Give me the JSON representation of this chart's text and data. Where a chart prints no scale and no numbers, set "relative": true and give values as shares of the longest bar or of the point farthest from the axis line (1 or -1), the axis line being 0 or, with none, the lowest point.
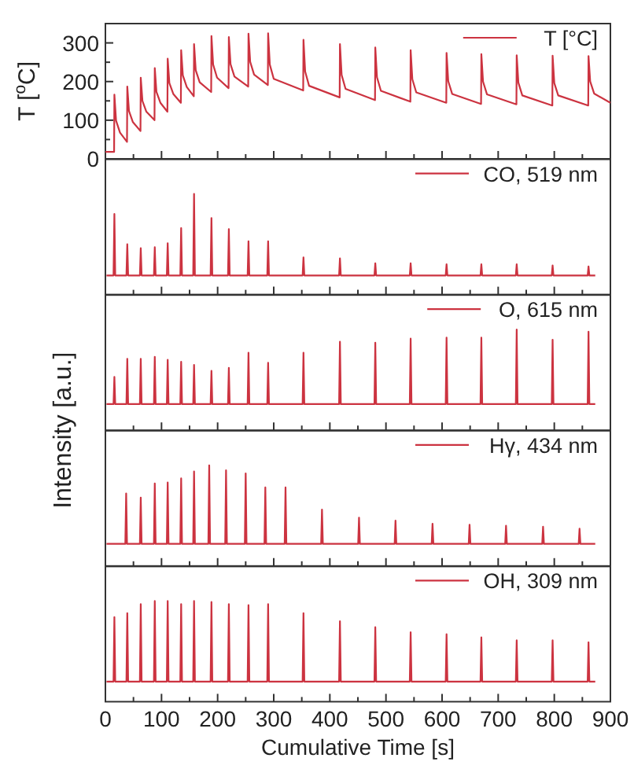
{
  "chart_data": [
    {
      "type": "line",
      "ylabel": "T [$^{o}$C]",
      "xlim": [
        0,
        900
      ],
      "ylim": [
        0,
        350
      ],
      "legend": "top right",
      "tick_labels": "y",
      "xticks": [
        0,
        {
          "value": 50,
          "label": null
        },
        100,
        {
          "value": 150,
          "label": null
        },
        200,
        {
          "value": 250,
          "label": null
        },
        300,
        {
          "value": 350,
          "label": null
        },
        400,
        {
          "value": 450,
          "label": null
        },
        500,
        {
          "value": 550,
          "label": null
        },
        600,
        {
          "value": 650,
          "label": null
        },
        700,
        {
          "value": 750,
          "label": null
        },
        800,
        {
          "value": 850,
          "label": null
        },
        900
      ],
      "yticks": [
        0,
        {
          "value": 50,
          "label": null
        },
        100,
        {
          "value": 150,
          "label": null
        },
        200,
        {
          "value": 250,
          "label": null
        },
        300
      ],
      "series": [
        {
          "name": "T [°C]",
          "color": "#cc3340",
          "x": [
            0,
            15.5,
            16,
            19,
            26,
            38.5,
            39,
            42,
            49,
            62.5,
            63,
            66,
            73,
            87.5,
            88,
            91,
            98,
            110.5,
            111,
            114,
            121,
            134.5,
            135,
            138,
            145,
            157.5,
            158,
            161,
            168,
            188.5,
            189,
            192,
            199,
            219.5,
            220,
            223,
            230,
            254.5,
            255,
            258,
            265,
            289.5,
            290,
            293,
            300,
            352.5,
            353,
            356,
            363,
            417.5,
            418,
            421,
            428,
            480.5,
            481,
            484,
            491,
            543.5,
            544,
            547,
            554,
            607.5,
            608,
            611,
            618,
            669.5,
            670,
            673,
            680,
            732.5,
            733,
            736,
            743,
            796.5,
            797,
            800,
            807,
            860.5,
            861,
            864,
            871,
            900
          ],
          "values": [
            18,
            18,
            166,
            99,
            68,
            44,
            187,
            124,
            95,
            72,
            210,
            150,
            122,
            100,
            235,
            173,
            145,
            122,
            259,
            196,
            168,
            145,
            281,
            216,
            186,
            162,
            297,
            229,
            198,
            173,
            318,
            244,
            210,
            183,
            315,
            245,
            213,
            187,
            324,
            251,
            218,
            191,
            325,
            244,
            207,
            177,
            308,
            226,
            189,
            159,
            297,
            217,
            181,
            152,
            288,
            211,
            176,
            148,
            281,
            206,
            172,
            145,
            274,
            201,
            168,
            142,
            271,
            200,
            167,
            141,
            268,
            197,
            164,
            138,
            267,
            196,
            164,
            138,
            266,
            200,
            169,
            145
          ]
        }
      ]
    },
    {
      "type": "line",
      "relative": true,
      "xlim": [
        0,
        900
      ],
      "legend": "top right",
      "tick_labels": false,
      "xticks": [
        0,
        {
          "value": 50,
          "label": null
        },
        100,
        {
          "value": 150,
          "label": null
        },
        200,
        {
          "value": 250,
          "label": null
        },
        300,
        {
          "value": 350,
          "label": null
        },
        400,
        {
          "value": 450,
          "label": null
        },
        500,
        {
          "value": 550,
          "label": null
        },
        600,
        {
          "value": 650,
          "label": null
        },
        700,
        {
          "value": 750,
          "label": null
        },
        800,
        {
          "value": 850,
          "label": null
        },
        900
      ],
      "series": [
        {
          "name": "CO, 519 nm",
          "color": "#cc3340",
          "x": [
            2,
            14.5,
            16,
            17.5,
            37.5,
            39,
            40.5,
            61.5,
            63,
            64.5,
            86.5,
            88,
            89.5,
            109.5,
            111,
            112.5,
            133.5,
            135,
            136.5,
            156.5,
            158,
            159.5,
            187.5,
            189,
            190.5,
            218.5,
            220,
            221.5,
            253.5,
            255,
            256.5,
            288.5,
            290,
            291.5,
            351.5,
            353,
            354.5,
            416.5,
            418,
            419.5,
            479.5,
            481,
            482.5,
            542.5,
            544,
            545.5,
            606.5,
            608,
            609.5,
            668.5,
            670,
            671.5,
            731.5,
            733,
            734.5,
            795.5,
            797,
            798.5,
            859.5,
            861,
            862.5,
            873
          ],
          "values": [
            0.19,
            0.19,
            0.8,
            0.19,
            0.19,
            0.5,
            0.19,
            0.19,
            0.46,
            0.19,
            0.19,
            0.47,
            0.19,
            0.19,
            0.51,
            0.19,
            0.19,
            0.66,
            0.19,
            0.19,
            1.0,
            0.19,
            0.19,
            0.76,
            0.19,
            0.19,
            0.65,
            0.19,
            0.19,
            0.53,
            0.19,
            0.19,
            0.53,
            0.19,
            0.19,
            0.37,
            0.19,
            0.19,
            0.36,
            0.19,
            0.19,
            0.31,
            0.19,
            0.19,
            0.31,
            0.19,
            0.19,
            0.3,
            0.19,
            0.19,
            0.3,
            0.19,
            0.19,
            0.3,
            0.19,
            0.19,
            0.29,
            0.19,
            0.19,
            0.28,
            0.19,
            0.19
          ]
        }
      ]
    },
    {
      "type": "line",
      "relative": true,
      "ylabel": "Intensity [a.u.]",
      "xlim": [
        0,
        900
      ],
      "legend": "top right",
      "tick_labels": false,
      "xticks": [
        0,
        {
          "value": 50,
          "label": null
        },
        100,
        {
          "value": 150,
          "label": null
        },
        200,
        {
          "value": 250,
          "label": null
        },
        300,
        {
          "value": 350,
          "label": null
        },
        400,
        {
          "value": 450,
          "label": null
        },
        500,
        {
          "value": 550,
          "label": null
        },
        600,
        {
          "value": 650,
          "label": null
        },
        700,
        {
          "value": 750,
          "label": null
        },
        800,
        {
          "value": 850,
          "label": null
        },
        900
      ],
      "series": [
        {
          "name": "O, 615 nm",
          "color": "#cc3340",
          "x": [
            2,
            14.5,
            16,
            17.5,
            37.5,
            39,
            40.5,
            61.5,
            63,
            64.5,
            86.5,
            88,
            89.5,
            109.5,
            111,
            112.5,
            133.5,
            135,
            136.5,
            156.5,
            158,
            159.5,
            187.5,
            189,
            190.5,
            218.5,
            220,
            221.5,
            253.5,
            255,
            256.5,
            288.5,
            290,
            291.5,
            351.5,
            353,
            354.5,
            416.5,
            418,
            419.5,
            479.5,
            481,
            482.5,
            542.5,
            544,
            545.5,
            606.5,
            608,
            609.5,
            668.5,
            670,
            671.5,
            731.5,
            733,
            734.5,
            795.5,
            797,
            798.5,
            859.5,
            861,
            862.5,
            873
          ],
          "values": [
            0.26,
            0.26,
            0.53,
            0.26,
            0.26,
            0.71,
            0.26,
            0.26,
            0.71,
            0.26,
            0.26,
            0.73,
            0.26,
            0.26,
            0.7,
            0.26,
            0.26,
            0.68,
            0.26,
            0.26,
            0.65,
            0.26,
            0.26,
            0.59,
            0.26,
            0.26,
            0.62,
            0.26,
            0.26,
            0.77,
            0.26,
            0.26,
            0.67,
            0.26,
            0.26,
            0.77,
            0.26,
            0.26,
            0.88,
            0.26,
            0.26,
            0.87,
            0.26,
            0.26,
            0.91,
            0.26,
            0.26,
            0.92,
            0.26,
            0.26,
            0.92,
            0.26,
            0.26,
            1.0,
            0.26,
            0.26,
            0.9,
            0.26,
            0.26,
            0.98,
            0.26,
            0.26
          ]
        }
      ]
    },
    {
      "type": "line",
      "relative": true,
      "xlim": [
        0,
        900
      ],
      "legend": "top right",
      "tick_labels": false,
      "xticks": [
        0,
        {
          "value": 50,
          "label": null
        },
        100,
        {
          "value": 150,
          "label": null
        },
        200,
        {
          "value": 250,
          "label": null
        },
        300,
        {
          "value": 350,
          "label": null
        },
        400,
        {
          "value": 450,
          "label": null
        },
        500,
        {
          "value": 550,
          "label": null
        },
        600,
        {
          "value": 650,
          "label": null
        },
        700,
        {
          "value": 750,
          "label": null
        },
        800,
        {
          "value": 850,
          "label": null
        },
        900
      ],
      "series": [
        {
          "name": "Hγ, 434 nm",
          "color": "#cc3340",
          "x": [
            2,
            35.5,
            37,
            38.5,
            61.5,
            63,
            64.5,
            86.5,
            88,
            89.5,
            109.5,
            111,
            112.5,
            133.5,
            135,
            136.5,
            156.5,
            158,
            159.5,
            183.5,
            185,
            186.5,
            213.5,
            215,
            216.5,
            248.5,
            250,
            251.5,
            283.5,
            285,
            286.5,
            319.5,
            321,
            322.5,
            384.5,
            386,
            387.5,
            450.5,
            452,
            453.5,
            515.5,
            517,
            518.5,
            581.5,
            583,
            584.5,
            647.5,
            649,
            650.5,
            712.5,
            714,
            715.5,
            778.5,
            780,
            781.5,
            843.5,
            845,
            846.5,
            873
          ],
          "values": [
            0.22,
            0.22,
            0.72,
            0.22,
            0.22,
            0.68,
            0.22,
            0.22,
            0.82,
            0.22,
            0.22,
            0.83,
            0.22,
            0.22,
            0.87,
            0.22,
            0.22,
            0.94,
            0.22,
            0.22,
            1.0,
            0.22,
            0.22,
            0.95,
            0.22,
            0.22,
            0.92,
            0.22,
            0.22,
            0.78,
            0.22,
            0.22,
            0.78,
            0.22,
            0.22,
            0.56,
            0.22,
            0.22,
            0.48,
            0.22,
            0.22,
            0.45,
            0.22,
            0.22,
            0.42,
            0.22,
            0.22,
            0.41,
            0.22,
            0.22,
            0.4,
            0.22,
            0.22,
            0.39,
            0.22,
            0.22,
            0.37,
            0.22,
            0.22
          ]
        }
      ]
    },
    {
      "type": "line",
      "relative": true,
      "xlabel": "Cumulative Time [s]",
      "xlim": [
        0,
        900
      ],
      "legend": "top right",
      "tick_labels": "x",
      "xticks": [
        0,
        {
          "value": 50,
          "label": null
        },
        100,
        {
          "value": 150,
          "label": null
        },
        200,
        {
          "value": 250,
          "label": null
        },
        300,
        {
          "value": 350,
          "label": null
        },
        400,
        {
          "value": 450,
          "label": null
        },
        500,
        {
          "value": 550,
          "label": null
        },
        600,
        {
          "value": 650,
          "label": null
        },
        700,
        {
          "value": 750,
          "label": null
        },
        800,
        {
          "value": 850,
          "label": null
        },
        900
      ],
      "series": [
        {
          "name": "OH, 309 nm",
          "color": "#cc3340",
          "x": [
            2,
            14.5,
            16,
            17.5,
            37.5,
            39,
            40.5,
            61.5,
            63,
            64.5,
            86.5,
            88,
            89.5,
            109.5,
            111,
            112.5,
            133.5,
            135,
            136.5,
            156.5,
            158,
            159.5,
            187.5,
            189,
            190.5,
            218.5,
            220,
            221.5,
            253.5,
            255,
            256.5,
            288.5,
            290,
            291.5,
            351.5,
            353,
            354.5,
            416.5,
            418,
            419.5,
            479.5,
            481,
            482.5,
            542.5,
            544,
            545.5,
            606.5,
            608,
            609.5,
            668.5,
            670,
            671.5,
            731.5,
            733,
            734.5,
            795.5,
            797,
            798.5,
            859.5,
            861,
            862.5,
            873
          ],
          "values": [
            0.2,
            0.2,
            0.84,
            0.2,
            0.2,
            0.88,
            0.2,
            0.2,
            0.97,
            0.2,
            0.2,
            1.0,
            0.2,
            0.2,
            1.0,
            0.2,
            0.2,
            0.97,
            0.2,
            0.2,
            1.0,
            0.2,
            0.2,
            0.99,
            0.2,
            0.2,
            0.97,
            0.2,
            0.2,
            0.96,
            0.2,
            0.2,
            0.97,
            0.2,
            0.2,
            0.88,
            0.2,
            0.2,
            0.8,
            0.2,
            0.2,
            0.74,
            0.2,
            0.2,
            0.69,
            0.2,
            0.2,
            0.67,
            0.2,
            0.2,
            0.64,
            0.2,
            0.2,
            0.61,
            0.2,
            0.2,
            0.61,
            0.2,
            0.2,
            0.59,
            0.2,
            0.2
          ]
        }
      ]
    }
  ]
}
